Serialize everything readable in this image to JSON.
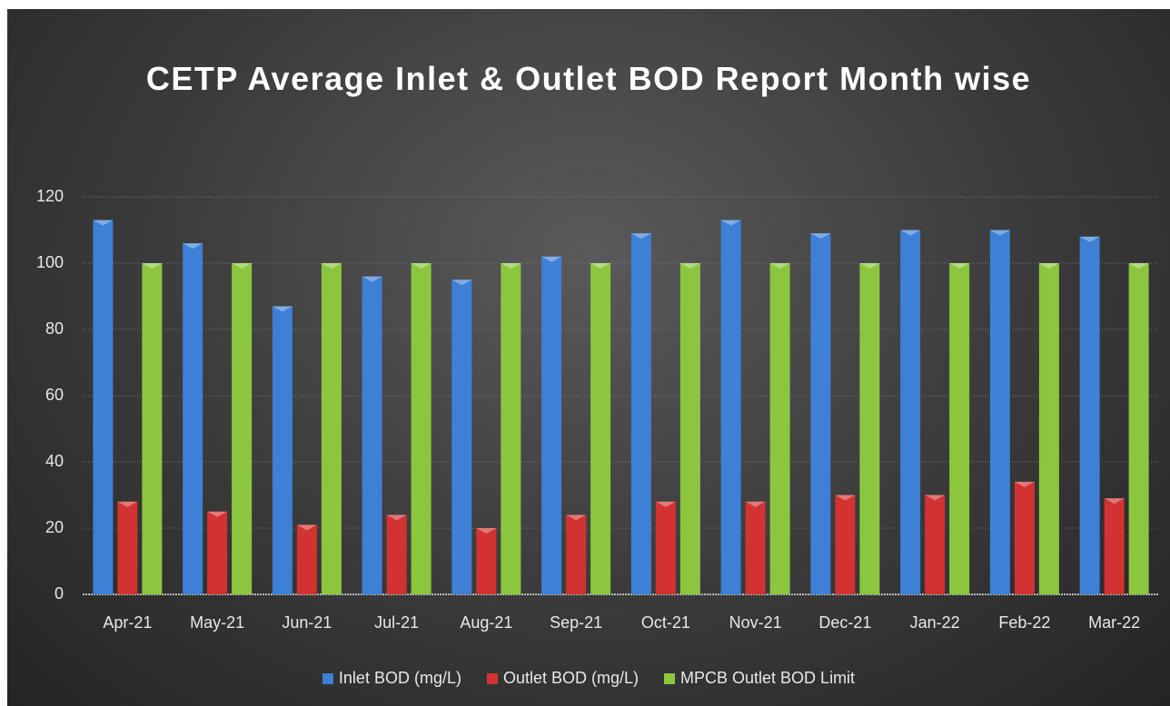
{
  "chart_data": {
    "type": "bar",
    "title": "CETP Average Inlet & Outlet BOD Report Month wise",
    "categories": [
      "Apr-21",
      "May-21",
      "Jun-21",
      "Jul-21",
      "Aug-21",
      "Sep-21",
      "Oct-21",
      "Nov-21",
      "Dec-21",
      "Jan-22",
      "Feb-22",
      "Mar-22"
    ],
    "series": [
      {
        "name": "Inlet BOD (mg/L)",
        "color": "#3d80d6",
        "values": [
          113,
          106,
          87,
          96,
          95,
          102,
          109,
          113,
          109,
          110,
          110,
          108
        ]
      },
      {
        "name": "Outlet BOD (mg/L)",
        "color": "#d23232",
        "values": [
          28,
          25,
          21,
          24,
          20,
          24,
          28,
          28,
          30,
          30,
          34,
          29
        ]
      },
      {
        "name": "MPCB Outlet BOD Limit",
        "color": "#8cc63f",
        "values": [
          100,
          100,
          100,
          100,
          100,
          100,
          100,
          100,
          100,
          100,
          100,
          100
        ]
      }
    ],
    "ylim": [
      0,
      120
    ],
    "yticks": [
      0,
      20,
      40,
      60,
      80,
      100,
      120
    ],
    "grid": true,
    "legend": "bottom"
  }
}
